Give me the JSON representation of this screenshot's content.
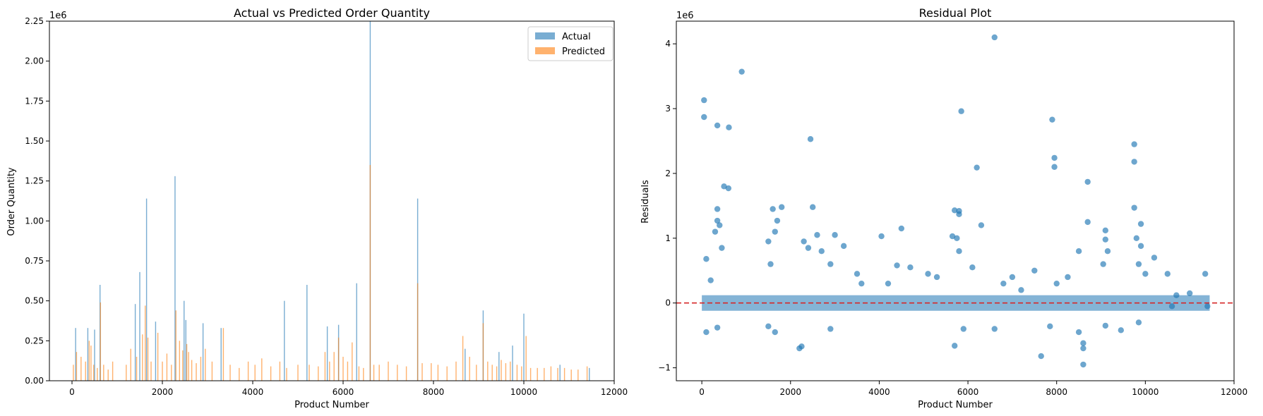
{
  "chart_data": [
    {
      "type": "bar",
      "title": "Actual vs Predicted Order Quantity",
      "xlabel": "Product Number",
      "ylabel": "Order Quantity",
      "y_offset_text": "1e6",
      "xlim": [
        -500,
        12000
      ],
      "ylim": [
        0,
        2.25
      ],
      "xticks": [
        0,
        2000,
        4000,
        6000,
        8000,
        10000,
        12000
      ],
      "xtick_labels": [
        "0",
        "2000",
        "4000",
        "6000",
        "8000",
        "10000",
        "12000"
      ],
      "yticks": [
        0,
        0.25,
        0.5,
        0.75,
        1.0,
        1.25,
        1.5,
        1.75,
        2.0,
        2.25
      ],
      "ytick_labels": [
        "0.00",
        "0.25",
        "0.50",
        "0.75",
        "1.00",
        "1.25",
        "1.50",
        "1.75",
        "2.00",
        "2.25"
      ],
      "legend": {
        "placement": "upper-right",
        "entries": [
          "Actual",
          "Predicted"
        ]
      },
      "grid": false,
      "series": [
        {
          "name": "Actual",
          "color": "#1f77b4",
          "points": [
            [
              80,
              0.33
            ],
            [
              350,
              0.33
            ],
            [
              500,
              0.32
            ],
            [
              620,
              0.6
            ],
            [
              1400,
              0.48
            ],
            [
              1500,
              0.68
            ],
            [
              1650,
              1.14
            ],
            [
              1850,
              0.37
            ],
            [
              2280,
              1.28
            ],
            [
              2480,
              0.5
            ],
            [
              2520,
              0.38
            ],
            [
              2900,
              0.36
            ],
            [
              3300,
              0.33
            ],
            [
              4700,
              0.5
            ],
            [
              5200,
              0.6
            ],
            [
              5650,
              0.34
            ],
            [
              5900,
              0.35
            ],
            [
              6300,
              0.61
            ],
            [
              6600,
              2.25
            ],
            [
              7650,
              1.14
            ],
            [
              8700,
              0.2
            ],
            [
              9100,
              0.44
            ],
            [
              9450,
              0.18
            ],
            [
              9750,
              0.22
            ],
            [
              10000,
              0.42
            ],
            [
              10800,
              0.1
            ],
            [
              11450,
              0.08
            ]
          ]
        },
        {
          "name": "Predicted",
          "color": "#ff7f0e",
          "points": [
            [
              30,
              0.1
            ],
            [
              100,
              0.18
            ],
            [
              200,
              0.15
            ],
            [
              300,
              0.12
            ],
            [
              380,
              0.25
            ],
            [
              420,
              0.22
            ],
            [
              480,
              0.1
            ],
            [
              560,
              0.08
            ],
            [
              630,
              0.49
            ],
            [
              700,
              0.1
            ],
            [
              800,
              0.07
            ],
            [
              900,
              0.12
            ],
            [
              1200,
              0.1
            ],
            [
              1300,
              0.2
            ],
            [
              1430,
              0.15
            ],
            [
              1560,
              0.29
            ],
            [
              1620,
              0.47
            ],
            [
              1680,
              0.27
            ],
            [
              1750,
              0.12
            ],
            [
              1900,
              0.3
            ],
            [
              2000,
              0.12
            ],
            [
              2100,
              0.17
            ],
            [
              2200,
              0.1
            ],
            [
              2300,
              0.44
            ],
            [
              2380,
              0.25
            ],
            [
              2450,
              0.19
            ],
            [
              2540,
              0.23
            ],
            [
              2580,
              0.18
            ],
            [
              2650,
              0.13
            ],
            [
              2750,
              0.11
            ],
            [
              2850,
              0.15
            ],
            [
              2950,
              0.2
            ],
            [
              3100,
              0.12
            ],
            [
              3350,
              0.33
            ],
            [
              3500,
              0.1
            ],
            [
              3700,
              0.08
            ],
            [
              3900,
              0.12
            ],
            [
              4050,
              0.1
            ],
            [
              4200,
              0.14
            ],
            [
              4400,
              0.09
            ],
            [
              4600,
              0.12
            ],
            [
              4750,
              0.08
            ],
            [
              5000,
              0.1
            ],
            [
              5250,
              0.1
            ],
            [
              5450,
              0.09
            ],
            [
              5600,
              0.18
            ],
            [
              5700,
              0.12
            ],
            [
              5800,
              0.18
            ],
            [
              5900,
              0.27
            ],
            [
              6000,
              0.15
            ],
            [
              6100,
              0.12
            ],
            [
              6200,
              0.24
            ],
            [
              6350,
              0.09
            ],
            [
              6450,
              0.08
            ],
            [
              6600,
              1.35
            ],
            [
              6680,
              0.1
            ],
            [
              6800,
              0.1
            ],
            [
              7000,
              0.12
            ],
            [
              7200,
              0.1
            ],
            [
              7400,
              0.09
            ],
            [
              7650,
              0.61
            ],
            [
              7750,
              0.11
            ],
            [
              7950,
              0.11
            ],
            [
              8100,
              0.1
            ],
            [
              8300,
              0.09
            ],
            [
              8500,
              0.12
            ],
            [
              8650,
              0.28
            ],
            [
              8800,
              0.15
            ],
            [
              8950,
              0.1
            ],
            [
              9100,
              0.36
            ],
            [
              9200,
              0.12
            ],
            [
              9300,
              0.1
            ],
            [
              9400,
              0.09
            ],
            [
              9500,
              0.13
            ],
            [
              9600,
              0.11
            ],
            [
              9700,
              0.12
            ],
            [
              9850,
              0.1
            ],
            [
              9950,
              0.09
            ],
            [
              10050,
              0.28
            ],
            [
              10150,
              0.08
            ],
            [
              10300,
              0.08
            ],
            [
              10450,
              0.08
            ],
            [
              10600,
              0.09
            ],
            [
              10750,
              0.08
            ],
            [
              10900,
              0.08
            ],
            [
              11050,
              0.07
            ],
            [
              11200,
              0.07
            ],
            [
              11400,
              0.09
            ]
          ]
        }
      ]
    },
    {
      "type": "scatter",
      "title": "Residual Plot",
      "xlabel": "Product Number",
      "ylabel": "Residuals",
      "y_offset_text": "1e6",
      "xlim": [
        -575,
        12000
      ],
      "ylim": [
        -1.2,
        4.35
      ],
      "xticks": [
        0,
        2000,
        4000,
        6000,
        8000,
        10000,
        12000
      ],
      "xtick_labels": [
        "0",
        "2000",
        "4000",
        "6000",
        "8000",
        "10000",
        "12000"
      ],
      "yticks": [
        -1,
        0,
        1,
        2,
        3,
        4
      ],
      "ytick_labels": [
        "−1",
        "0",
        "1",
        "2",
        "3",
        "4"
      ],
      "grid": false,
      "reference_line": {
        "y": 0,
        "style": "dashed",
        "color": "#d62728"
      },
      "series": [
        {
          "color": "#1f77b4",
          "points": [
            [
              50,
              3.13
            ],
            [
              50,
              2.87
            ],
            [
              350,
              2.74
            ],
            [
              610,
              2.71
            ],
            [
              900,
              3.57
            ],
            [
              500,
              1.8
            ],
            [
              600,
              1.77
            ],
            [
              350,
              1.45
            ],
            [
              350,
              1.27
            ],
            [
              400,
              1.2
            ],
            [
              300,
              1.1
            ],
            [
              450,
              0.85
            ],
            [
              100,
              0.68
            ],
            [
              200,
              0.35
            ],
            [
              1600,
              1.45
            ],
            [
              1800,
              1.48
            ],
            [
              1700,
              1.27
            ],
            [
              1650,
              1.1
            ],
            [
              1500,
              0.95
            ],
            [
              1550,
              0.6
            ],
            [
              2450,
              2.53
            ],
            [
              2500,
              1.48
            ],
            [
              2300,
              0.95
            ],
            [
              2400,
              0.85
            ],
            [
              2600,
              1.05
            ],
            [
              2700,
              0.8
            ],
            [
              3000,
              1.05
            ],
            [
              3200,
              0.88
            ],
            [
              2900,
              0.6
            ],
            [
              2250,
              -0.67
            ],
            [
              2200,
              -0.7
            ],
            [
              100,
              -0.45
            ],
            [
              350,
              -0.38
            ],
            [
              1500,
              -0.36
            ],
            [
              1650,
              -0.45
            ],
            [
              2900,
              -0.4
            ],
            [
              4050,
              1.03
            ],
            [
              4500,
              1.15
            ],
            [
              4200,
              0.3
            ],
            [
              4400,
              0.58
            ],
            [
              4700,
              0.55
            ],
            [
              5100,
              0.45
            ],
            [
              5700,
              1.43
            ],
            [
              5800,
              1.42
            ],
            [
              5800,
              1.37
            ],
            [
              5650,
              1.03
            ],
            [
              5750,
              1.0
            ],
            [
              5800,
              0.8
            ],
            [
              5850,
              2.96
            ],
            [
              6200,
              2.09
            ],
            [
              6600,
              4.1
            ],
            [
              6300,
              1.2
            ],
            [
              6100,
              0.55
            ],
            [
              5900,
              -0.4
            ],
            [
              5700,
              -0.66
            ],
            [
              6600,
              -0.4
            ],
            [
              7000,
              0.4
            ],
            [
              7500,
              0.5
            ],
            [
              7900,
              2.83
            ],
            [
              7950,
              2.24
            ],
            [
              7950,
              2.1
            ],
            [
              8700,
              1.87
            ],
            [
              8700,
              1.25
            ],
            [
              8500,
              0.8
            ],
            [
              8250,
              0.4
            ],
            [
              7850,
              -0.36
            ],
            [
              7650,
              -0.82
            ],
            [
              8600,
              -0.62
            ],
            [
              8600,
              -0.7
            ],
            [
              8600,
              -0.95
            ],
            [
              8500,
              -0.45
            ],
            [
              9100,
              1.12
            ],
            [
              9100,
              0.98
            ],
            [
              9150,
              0.8
            ],
            [
              9050,
              0.6
            ],
            [
              9100,
              -0.35
            ],
            [
              9450,
              -0.42
            ],
            [
              9750,
              2.45
            ],
            [
              9750,
              2.18
            ],
            [
              9750,
              1.47
            ],
            [
              9800,
              1.0
            ],
            [
              9900,
              1.22
            ],
            [
              9900,
              0.88
            ],
            [
              9850,
              0.6
            ],
            [
              10200,
              0.7
            ],
            [
              10000,
              0.45
            ],
            [
              10500,
              0.45
            ],
            [
              9850,
              -0.3
            ],
            [
              11350,
              0.45
            ],
            [
              11000,
              0.15
            ],
            [
              10700,
              0.12
            ],
            [
              3500,
              0.45
            ],
            [
              3600,
              0.3
            ],
            [
              5300,
              0.4
            ],
            [
              6800,
              0.3
            ],
            [
              7200,
              0.2
            ],
            [
              8000,
              0.3
            ],
            [
              10600,
              -0.05
            ],
            [
              11400,
              -0.05
            ]
          ]
        }
      ]
    }
  ]
}
